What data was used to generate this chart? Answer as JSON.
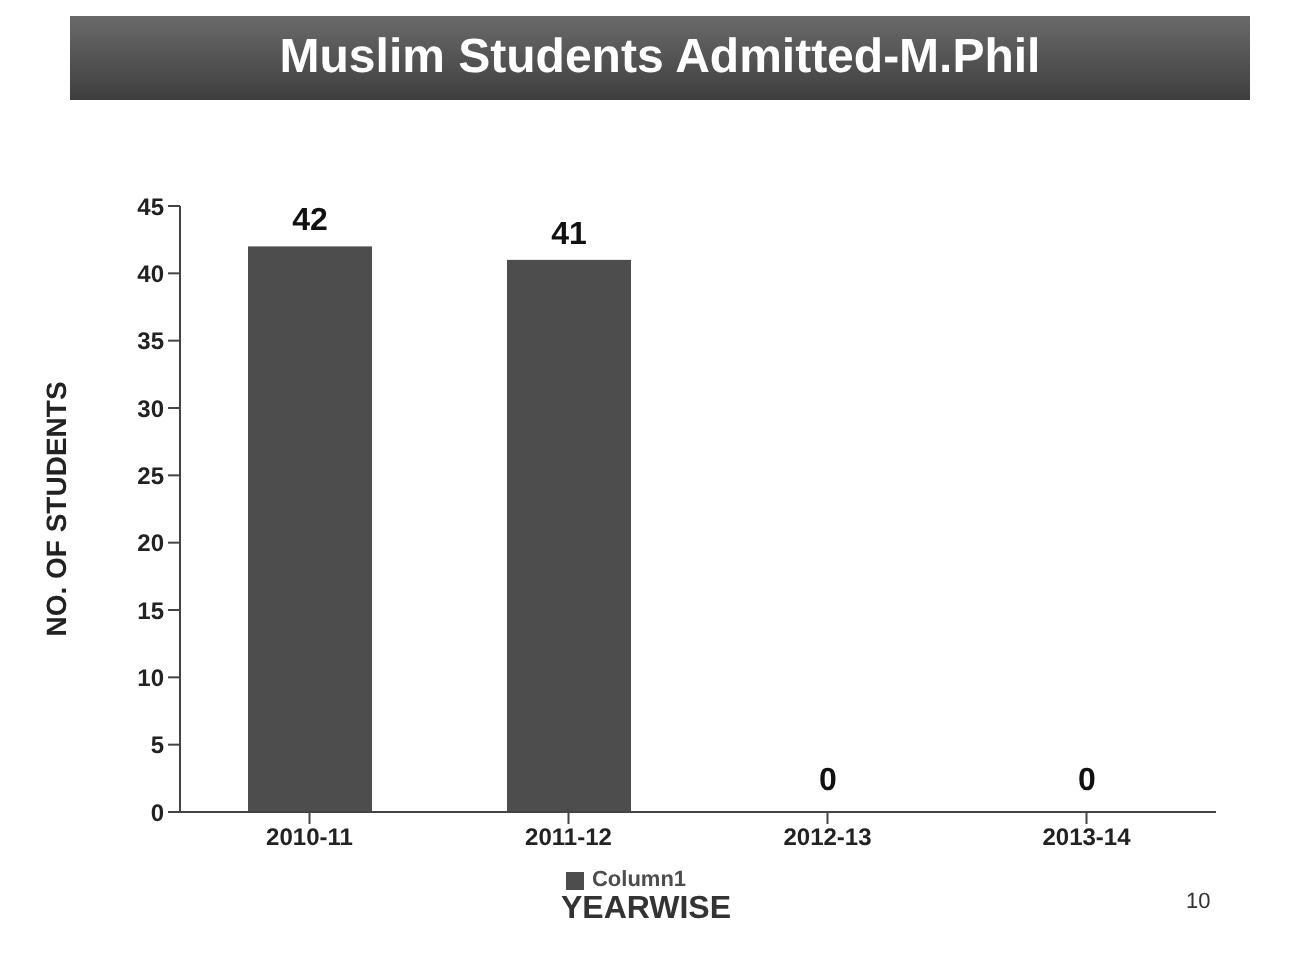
{
  "chart_data": {
    "type": "bar",
    "title": "Muslim Students Admitted-M.Phil",
    "categories": [
      "2010-11",
      "2011-12",
      "2012-13",
      "2013-14"
    ],
    "series": [
      {
        "name": "Column1",
        "color": "#4d4d4d",
        "values": [
          42,
          41,
          0,
          0
        ]
      }
    ],
    "xlabel": "YEARWISE",
    "ylabel": "NO. OF  STUDENTS",
    "ylim": [
      0,
      45
    ],
    "yticks": [
      0,
      5,
      10,
      15,
      20,
      25,
      30,
      35,
      40,
      45
    ],
    "data_labels": true,
    "grid": false,
    "legend": "bottom",
    "annotations": [
      "10"
    ]
  }
}
